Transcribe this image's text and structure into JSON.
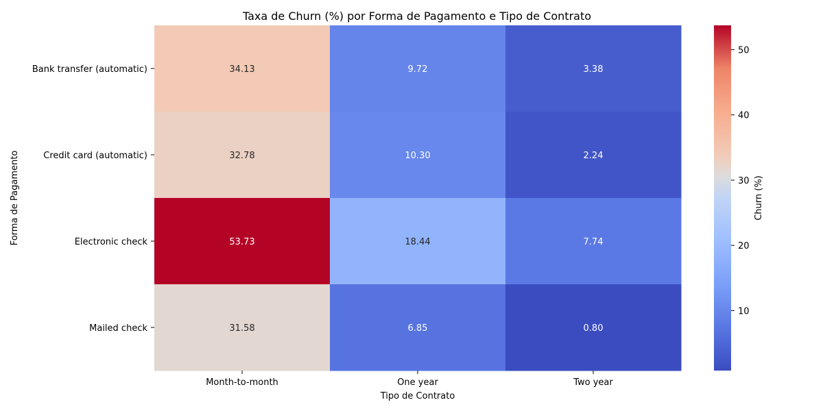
{
  "chart_data": {
    "type": "heatmap",
    "title": "Taxa de Churn (%) por Forma de Pagamento e Tipo de Contrato",
    "xlabel": "Tipo de Contrato",
    "ylabel": "Forma de Pagamento",
    "x_categories": [
      "Month-to-month",
      "One year",
      "Two year"
    ],
    "y_categories": [
      "Bank transfer (automatic)",
      "Credit card (automatic)",
      "Electronic check",
      "Mailed check"
    ],
    "values": [
      [
        34.13,
        9.72,
        3.38
      ],
      [
        32.78,
        10.3,
        2.24
      ],
      [
        53.73,
        18.44,
        7.74
      ],
      [
        31.58,
        6.85,
        0.8
      ]
    ],
    "value_labels": [
      [
        "34.13",
        "9.72",
        "3.38"
      ],
      [
        "32.78",
        "10.30",
        "2.24"
      ],
      [
        "53.73",
        "18.44",
        "7.74"
      ],
      [
        "31.58",
        "6.85",
        "0.80"
      ]
    ],
    "colormap": "coolwarm",
    "vmin": 0.8,
    "vmax": 53.73,
    "colorbar": {
      "label": "Churn (%)",
      "ticks": [
        10,
        20,
        30,
        40,
        50
      ],
      "tick_labels": [
        "10",
        "20",
        "30",
        "40",
        "50"
      ]
    }
  }
}
